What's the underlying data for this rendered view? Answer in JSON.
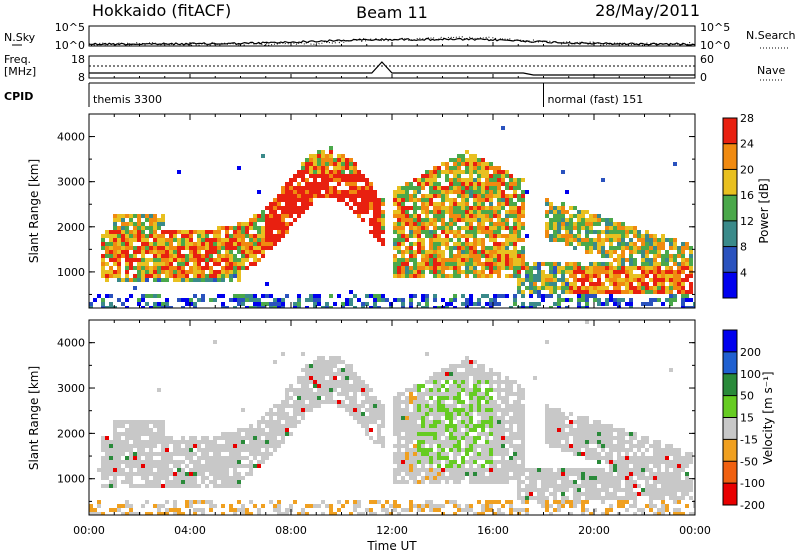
{
  "header": {
    "station": "Hokkaido (fitACF)",
    "beam": "Beam 11",
    "date": "28/May/2011"
  },
  "panels": {
    "nsky_label": "N.Sky",
    "nsearch_label": "N.Search",
    "freq_label_line1": "Freq.",
    "freq_label_line2": "[MHz]",
    "nave_label": "Nave",
    "cpid_label": "CPID",
    "nsky_ticks": [
      "10^5",
      "10^0"
    ],
    "nsearch_ticks": [
      "10^5",
      "10^0"
    ],
    "freq_ticks": [
      "18",
      "8"
    ],
    "nave_ticks": [
      "60",
      "0"
    ],
    "cpid_segments": [
      {
        "label": "themis 3300",
        "start_hour": 0
      },
      {
        "label": "normal (fast) 151",
        "start_hour": 18
      }
    ]
  },
  "chart_data": [
    {
      "type": "heatmap",
      "name": "power",
      "ylabel": "Slant Range [km]",
      "xlabel": "",
      "ylim": [
        200,
        4500
      ],
      "yticks": [
        "1000",
        "2000",
        "3000",
        "4000"
      ],
      "xticks": [
        "00:00",
        "04:00",
        "08:00",
        "12:00",
        "16:00",
        "20:00",
        "00:00"
      ],
      "colorbar": {
        "label": "Power [dB]",
        "ticks": [
          "4",
          "8",
          "12",
          "16",
          "20",
          "24",
          "28"
        ],
        "colors": [
          "#0000ee",
          "#2a52be",
          "#3a8a8a",
          "#4aa84a",
          "#e8c020",
          "#f08a10",
          "#e82010"
        ]
      }
    },
    {
      "type": "heatmap",
      "name": "velocity",
      "ylabel": "Slant Range [km]",
      "xlabel": "Time UT",
      "ylim": [
        200,
        4500
      ],
      "yticks": [
        "1000",
        "2000",
        "3000",
        "4000"
      ],
      "xticks": [
        "00:00",
        "04:00",
        "08:00",
        "12:00",
        "16:00",
        "20:00",
        "00:00"
      ],
      "colorbar": {
        "label": "Velocity [m s⁻¹]",
        "ticks": [
          "200",
          "100",
          "50",
          "15",
          "-15",
          "-50",
          "-100",
          "-200"
        ],
        "colors": [
          "#0000ee",
          "#2060d0",
          "#2a8a3a",
          "#66cc22",
          "#c8c8c8",
          "#f0a020",
          "#f06010",
          "#e80000"
        ]
      }
    }
  ]
}
